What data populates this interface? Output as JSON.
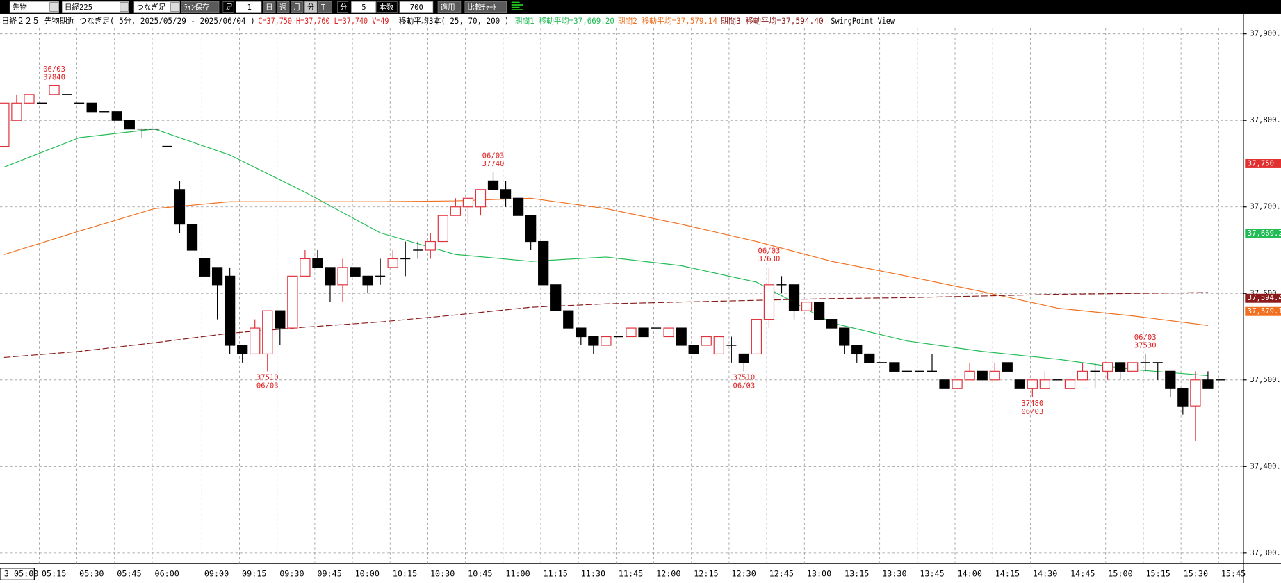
{
  "toolbar": {
    "items": [
      "先物",
      "日経225",
      "つなぎ足",
      "ﾗｲﾝ保存",
      "足",
      "1",
      "日",
      "週",
      "月",
      "分",
      "T",
      "分",
      "5",
      "本数",
      "700",
      "適用",
      "比較ﾁｬｰﾄ"
    ]
  },
  "header": {
    "parts": [
      {
        "text": "日経２２５ 先物期近 つなぎ足( 5分, 2025/05/29 - 2025/06/04 )",
        "color": "#000000"
      },
      {
        "text": "C=37,750 H=37,760 L=37,740 V=49",
        "color": "#e02020"
      },
      {
        "text": "移動平均3本( 25, 70, 200 )",
        "color": "#000000"
      },
      {
        "text": "期間1 移動平均=37,669.20",
        "color": "#22bb55"
      },
      {
        "text": "期間2 移動平均=37,579.14",
        "color": "#f07020"
      },
      {
        "text": "期間3 移動平均=37,594.40",
        "color": "#8b1a1a"
      },
      {
        "text": "SwingPoint View",
        "color": "#000000"
      }
    ]
  },
  "chart_data": {
    "type": "candlestick",
    "ylim": [
      37288,
      37907
    ],
    "yticks": [
      {
        "value": 37900,
        "label": "37,900.00"
      },
      {
        "value": 37800,
        "label": "37,800.00"
      },
      {
        "value": 37700,
        "label": "37,700.00"
      },
      {
        "value": 37600,
        "label": "37,600.00"
      },
      {
        "value": 37500,
        "label": "37,500.00"
      },
      {
        "value": 37400,
        "label": "37,400.00"
      },
      {
        "value": 37300,
        "label": "37,300.00"
      }
    ],
    "xtick_labels": [
      "3 05:00",
      "05:15",
      "05:30",
      "05:45",
      "06:00",
      "09:00",
      "09:15",
      "09:30",
      "09:45",
      "10:00",
      "10:15",
      "10:30",
      "10:45",
      "11:00",
      "11:15",
      "11:30",
      "11:45",
      "12:00",
      "12:15",
      "12:30",
      "12:45",
      "13:00",
      "13:15",
      "13:30",
      "13:45",
      "14:00",
      "14:15",
      "14:30",
      "14:45",
      "15:00",
      "15:15",
      "15:30",
      "15:45"
    ],
    "grid": true,
    "up_color": "#e0303a",
    "down_color": "#000000",
    "open": [
      37770,
      37800,
      37820,
      37820,
      37830,
      37830,
      37820,
      37820,
      37810,
      37810,
      37800,
      37790,
      37790,
      37770,
      37720,
      37680,
      37640,
      37630,
      37620,
      37540,
      37530,
      37530,
      37580,
      37560,
      37620,
      37640,
      37630,
      37610,
      37630,
      37620,
      37620,
      37630,
      37640,
      37650,
      37650,
      37660,
      37690,
      37700,
      37700,
      37730,
      37720,
      37710,
      37690,
      37660,
      37610,
      37580,
      37560,
      37550,
      37540,
      37550,
      37550,
      37560,
      37560,
      37550,
      37560,
      37540,
      37540,
      37530,
      37540,
      37530,
      37530,
      37570,
      37610,
      37610,
      37580,
      37590,
      37570,
      37560,
      37540,
      37530,
      37520,
      37520,
      37510,
      37510,
      37510,
      37500,
      37490,
      37500,
      37510,
      37500,
      37520,
      37500,
      37490,
      37490,
      37500,
      37490,
      37500,
      37510,
      37510,
      37520,
      37510,
      37520,
      37520,
      37510,
      37490,
      37470,
      37500,
      37500
    ],
    "high": [
      37820,
      37830,
      37830,
      37820,
      37840,
      37830,
      37820,
      37820,
      37810,
      37810,
      37800,
      37790,
      37790,
      37770,
      37730,
      37680,
      37640,
      37630,
      37630,
      37540,
      37570,
      37580,
      37580,
      37620,
      37650,
      37650,
      37630,
      37640,
      37630,
      37620,
      37640,
      37650,
      37660,
      37660,
      37670,
      37690,
      37710,
      37710,
      37720,
      37740,
      37730,
      37710,
      37690,
      37660,
      37610,
      37580,
      37560,
      37550,
      37550,
      37550,
      37560,
      37560,
      37560,
      37560,
      37560,
      37540,
      37550,
      37550,
      37550,
      37530,
      37570,
      37630,
      37620,
      37610,
      37590,
      37590,
      37570,
      37560,
      37540,
      37530,
      37520,
      37520,
      37510,
      37510,
      37530,
      37500,
      37500,
      37520,
      37510,
      37520,
      37520,
      37500,
      37500,
      37510,
      37500,
      37500,
      37520,
      37520,
      37520,
      37520,
      37520,
      37530,
      37520,
      37510,
      37490,
      37510,
      37510,
      37500
    ],
    "low": [
      37770,
      37800,
      37820,
      37820,
      37830,
      37830,
      37820,
      37810,
      37810,
      37800,
      37790,
      37780,
      37790,
      37770,
      37670,
      37650,
      37620,
      37570,
      37530,
      37520,
      37530,
      37510,
      37540,
      37560,
      37620,
      37630,
      37590,
      37590,
      37620,
      37600,
      37610,
      37630,
      37620,
      37640,
      37640,
      37660,
      37690,
      37680,
      37690,
      37720,
      37700,
      37690,
      37650,
      37610,
      37580,
      37560,
      37540,
      37530,
      37540,
      37550,
      37550,
      37550,
      37560,
      37550,
      37540,
      37530,
      37540,
      37530,
      37520,
      37510,
      37530,
      37560,
      37600,
      37570,
      37580,
      37570,
      37560,
      37530,
      37520,
      37520,
      37520,
      37510,
      37510,
      37510,
      37510,
      37490,
      37490,
      37500,
      37500,
      37500,
      37510,
      37490,
      37480,
      37490,
      37500,
      37490,
      37500,
      37490,
      37500,
      37500,
      37510,
      37510,
      37500,
      37480,
      37460,
      37430,
      37490,
      37500
    ],
    "close": [
      37820,
      37820,
      37830,
      37820,
      37840,
      37830,
      37820,
      37810,
      37810,
      37800,
      37790,
      37790,
      37790,
      37770,
      37680,
      37650,
      37620,
      37610,
      37540,
      37530,
      37560,
      37580,
      37560,
      37620,
      37640,
      37630,
      37610,
      37630,
      37620,
      37610,
      37620,
      37640,
      37640,
      37650,
      37660,
      37690,
      37700,
      37710,
      37720,
      37720,
      37710,
      37690,
      37660,
      37610,
      37580,
      37560,
      37550,
      37540,
      37550,
      37550,
      37560,
      37550,
      37560,
      37560,
      37540,
      37530,
      37550,
      37550,
      37540,
      37520,
      37570,
      37610,
      37610,
      37580,
      37590,
      37570,
      37560,
      37540,
      37530,
      37520,
      37520,
      37510,
      37510,
      37510,
      37510,
      37490,
      37500,
      37510,
      37500,
      37510,
      37510,
      37490,
      37500,
      37500,
      37500,
      37500,
      37510,
      37510,
      37520,
      37510,
      37520,
      37520,
      37520,
      37490,
      37470,
      37500,
      37490,
      37500
    ],
    "series": [
      {
        "color": "#22bb55",
        "dash": false,
        "x": [
          0,
          6,
          12,
          18,
          24,
          30,
          36,
          42,
          48,
          54,
          60,
          66,
          72,
          78,
          84,
          90,
          96
        ],
        "values": [
          37746,
          37780,
          37790,
          37760,
          37717,
          37670,
          37645,
          37637,
          37642,
          37632,
          37613,
          37566,
          37545,
          37533,
          37524,
          37512,
          37505
        ]
      },
      {
        "color": "#f07020",
        "dash": false,
        "x": [
          0,
          6,
          12,
          18,
          24,
          30,
          36,
          42,
          48,
          54,
          60,
          66,
          72,
          78,
          84,
          90,
          96
        ],
        "values": [
          37645,
          37672,
          37698,
          37706,
          37706,
          37706,
          37707,
          37710,
          37698,
          37680,
          37660,
          37637,
          37620,
          37602,
          37583,
          37574,
          37563
        ]
      },
      {
        "color": "#8b1a1a",
        "dash": true,
        "x": [
          0,
          6,
          12,
          18,
          24,
          30,
          36,
          42,
          48,
          54,
          60,
          66,
          72,
          78,
          84,
          90,
          96
        ],
        "values": [
          37526,
          37533,
          37543,
          37554,
          37561,
          37567,
          37575,
          37584,
          37588,
          37590,
          37592,
          37594,
          37595,
          37597,
          37599,
          37600,
          37601
        ]
      }
    ],
    "annotations": [
      {
        "date": "06/03",
        "value": 37840
      },
      {
        "date": "06/03",
        "value": 37510
      },
      {
        "date": "06/03",
        "value": 37740
      },
      {
        "date": "06/03",
        "value": 37510
      },
      {
        "date": "06/03",
        "value": 37630
      },
      {
        "date": "06/03",
        "value": 37480
      },
      {
        "date": "06/03",
        "value": 37530
      }
    ],
    "price_badges": [
      {
        "value": 37750,
        "label": "37,750",
        "color": "#e03030"
      },
      {
        "value": 37669.2,
        "label": "37,669.2",
        "color": "#22bb55"
      },
      {
        "value": 37594.4,
        "label": "37,594.4",
        "color": "#8b1a1a"
      },
      {
        "value": 37579.14,
        "label": "37,579.1",
        "color": "#f07020"
      }
    ]
  }
}
